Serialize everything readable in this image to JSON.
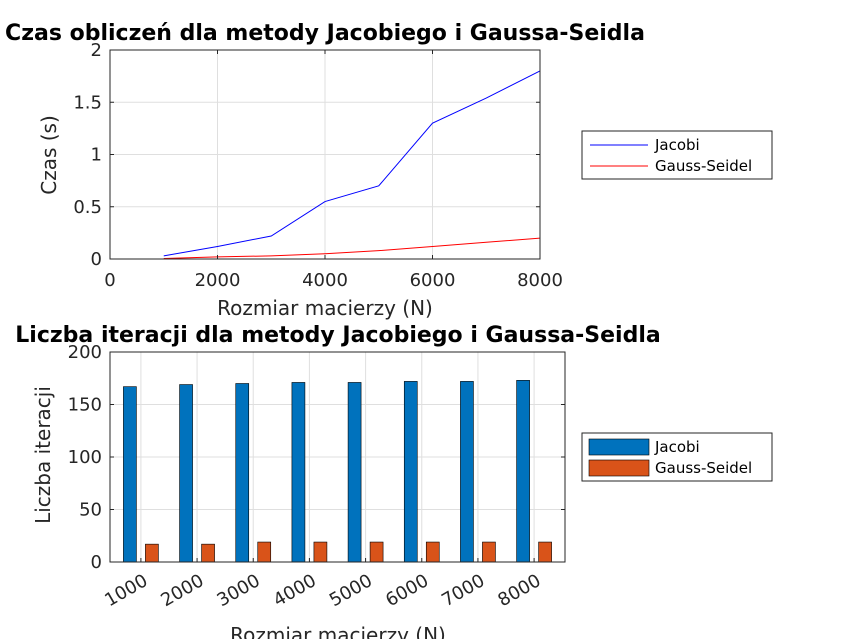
{
  "chart_data": [
    {
      "type": "line",
      "title": "Czas obliczeń dla metody Jacobiego i Gaussa-Seidla",
      "xlabel": "Rozmiar macierzy (N)",
      "ylabel": "Czas (s)",
      "xlim": [
        0,
        8000
      ],
      "ylim": [
        0,
        2
      ],
      "xticks": [
        0,
        2000,
        4000,
        6000,
        8000
      ],
      "xtick_labels": [
        "0",
        "2000",
        "4000",
        "6000",
        "8000"
      ],
      "yticks": [
        0,
        0.5,
        1,
        1.5,
        2
      ],
      "ytick_labels": [
        "0",
        "0.5",
        "1",
        "1.5",
        "2"
      ],
      "grid": true,
      "legend_position": "outside right",
      "x": [
        1000,
        2000,
        3000,
        4000,
        5000,
        6000,
        7000,
        8000
      ],
      "series": [
        {
          "name": "Jacobi",
          "color": "#0000ff",
          "values": [
            0.03,
            0.12,
            0.22,
            0.55,
            0.7,
            1.3,
            1.54,
            1.8
          ]
        },
        {
          "name": "Gauss-Seidel",
          "color": "#ff0000",
          "values": [
            0.005,
            0.02,
            0.03,
            0.05,
            0.08,
            0.12,
            0.16,
            0.2
          ]
        }
      ]
    },
    {
      "type": "bar",
      "title": "Liczba iteracji dla metody Jacobiego i Gaussa-Seidla",
      "xlabel": "Rozmiar macierzy (N)",
      "ylabel": "Liczba iteracji",
      "ylim": [
        0,
        200
      ],
      "yticks": [
        0,
        50,
        100,
        150,
        200
      ],
      "ytick_labels": [
        "0",
        "50",
        "100",
        "150",
        "200"
      ],
      "grid": true,
      "legend_position": "outside right",
      "categories": [
        "1000",
        "2000",
        "3000",
        "4000",
        "5000",
        "6000",
        "7000",
        "8000"
      ],
      "series": [
        {
          "name": "Jacobi",
          "color": "#0072bd",
          "values": [
            167,
            169,
            170,
            171,
            171,
            172,
            172,
            173
          ]
        },
        {
          "name": "Gauss-Seidel",
          "color": "#d95319",
          "values": [
            17,
            17,
            19,
            19,
            19,
            19,
            19,
            19
          ]
        }
      ]
    }
  ]
}
